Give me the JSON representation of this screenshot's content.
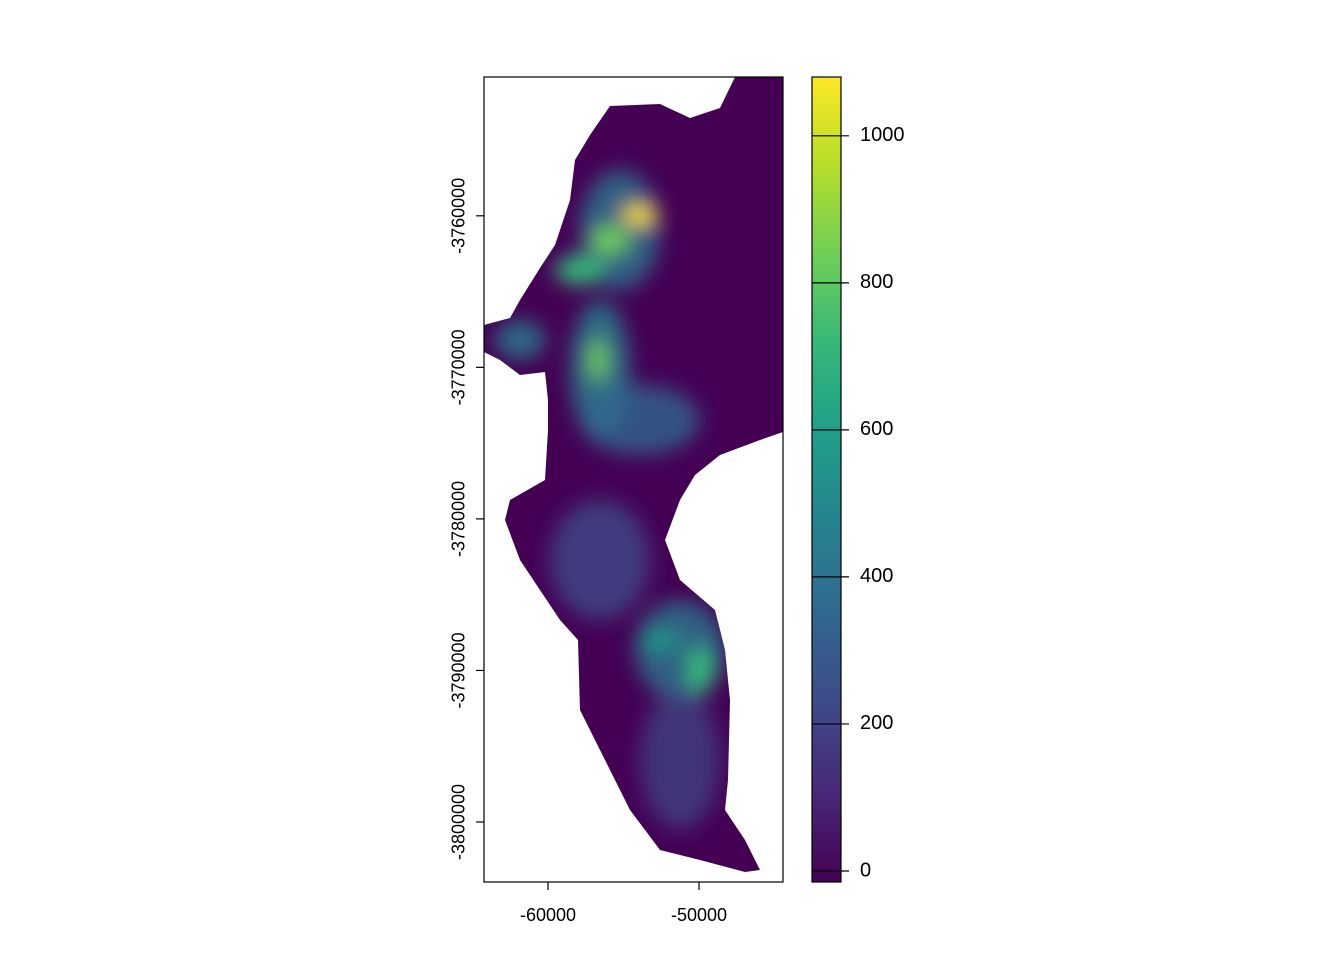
{
  "chart_data": {
    "type": "raster",
    "xlim": [
      -64240,
      -44440
    ],
    "xticks": [
      -60000,
      -50000
    ],
    "ylim": [
      -3803960,
      -3750840
    ],
    "yticks": [
      -3760000,
      -3770000,
      -3780000,
      -3790000,
      -3800000
    ],
    "colorbar": {
      "zlim": [
        -15,
        1080
      ],
      "ticks": [
        0,
        200,
        400,
        600,
        800,
        1000
      ],
      "palette": [
        "#440154",
        "#482878",
        "#3e4a89",
        "#31688e",
        "#26828e",
        "#1f9e89",
        "#35b779",
        "#6ece58",
        "#b5de2b",
        "#fde725"
      ]
    }
  }
}
